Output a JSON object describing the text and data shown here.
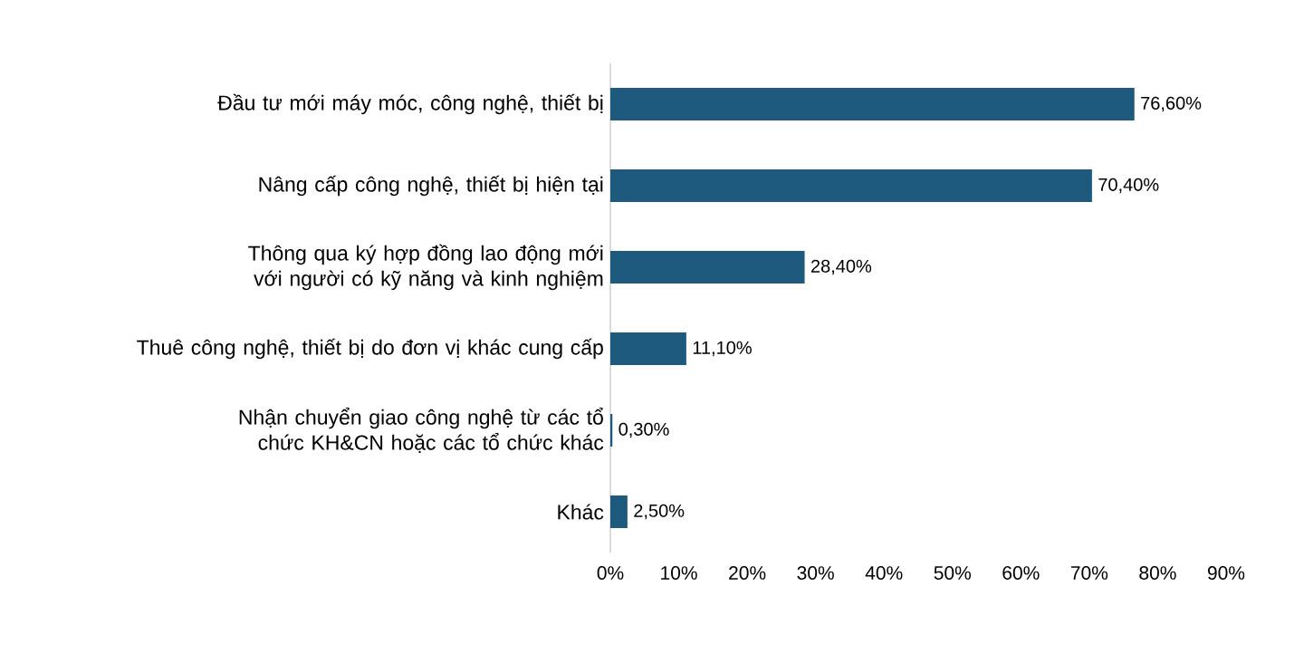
{
  "chart_data": {
    "type": "bar",
    "orientation": "horizontal",
    "categories": [
      "Đầu tư mới máy móc, công nghệ, thiết bị",
      "Nâng cấp công nghệ, thiết bị hiện tại",
      "Thông qua ký hợp đồng lao động mới với người có kỹ năng và kinh nghiệm",
      "Thuê công nghệ, thiết bị do đơn vị khác cung cấp",
      "Nhận chuyển giao công nghệ từ các tổ chức KH&CN hoặc các tổ chức khác",
      "Khác"
    ],
    "values": [
      76.6,
      70.4,
      28.4,
      11.1,
      0.3,
      2.5
    ],
    "value_labels": [
      "76,60%",
      "70,40%",
      "28,40%",
      "11,10%",
      "0,30%",
      "2,50%"
    ],
    "color": "#1d5a7e",
    "xlim": [
      0,
      90
    ],
    "xticks": [
      {
        "value": 0,
        "label": "0%"
      },
      {
        "value": 10,
        "label": "10%"
      },
      {
        "value": 20,
        "label": "20%"
      },
      {
        "value": 30,
        "label": "30%"
      },
      {
        "value": 40,
        "label": "40%"
      },
      {
        "value": 50,
        "label": "50%"
      },
      {
        "value": 60,
        "label": "60%"
      },
      {
        "value": 70,
        "label": "70%"
      },
      {
        "value": 80,
        "label": "80%"
      },
      {
        "value": 90,
        "label": "90%"
      }
    ],
    "grid": false
  }
}
